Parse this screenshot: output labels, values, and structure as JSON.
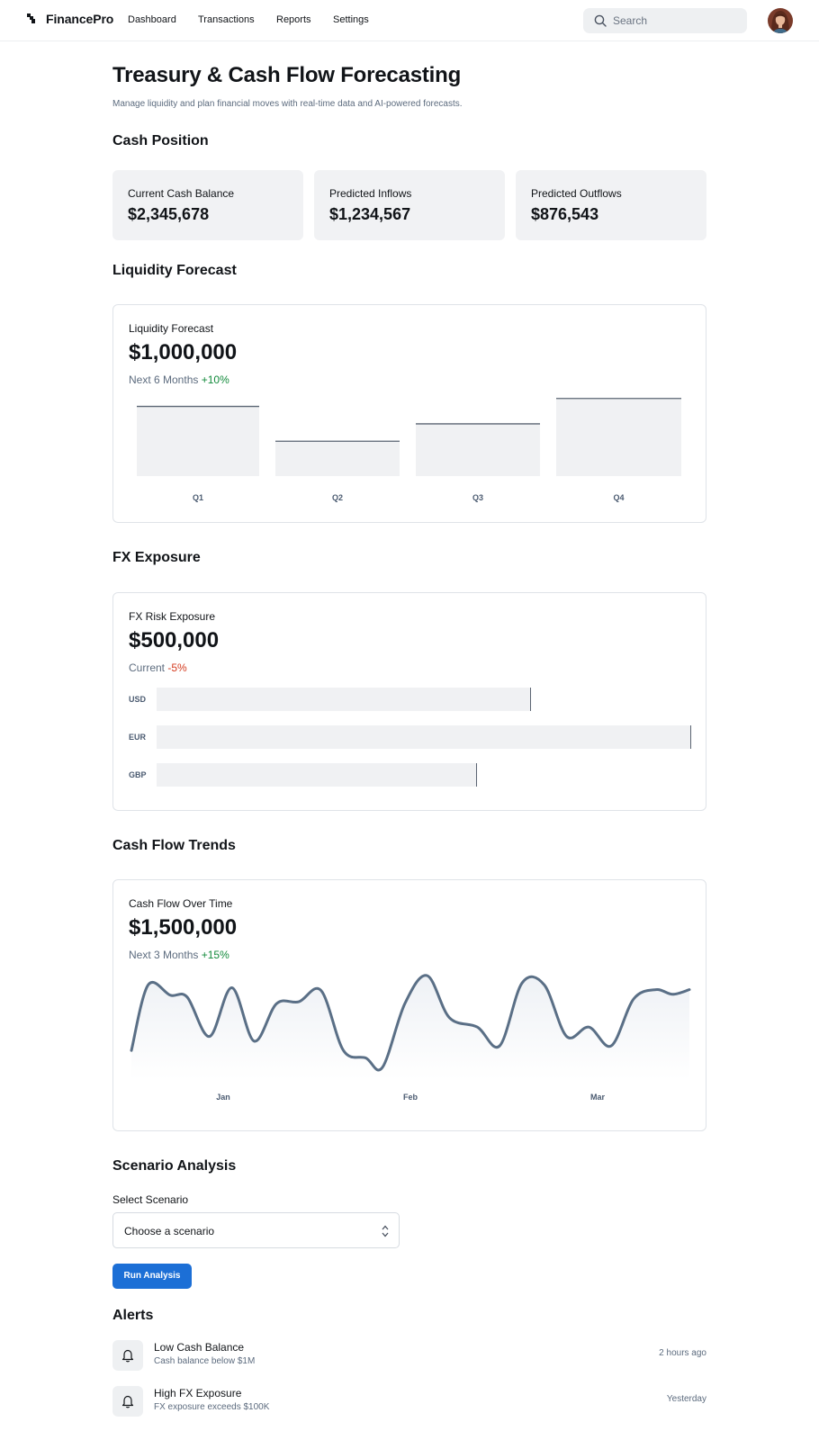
{
  "header": {
    "brand": "FinancePro",
    "nav": [
      "Dashboard",
      "Transactions",
      "Reports",
      "Settings"
    ],
    "search_placeholder": "Search"
  },
  "page": {
    "title": "Treasury & Cash Flow Forecasting",
    "subtitle": "Manage liquidity and plan financial moves with real-time data and AI-powered forecasts."
  },
  "cash_position": {
    "title": "Cash Position",
    "cards": [
      {
        "label": "Current Cash Balance",
        "value": "$2,345,678"
      },
      {
        "label": "Predicted Inflows",
        "value": "$1,234,567"
      },
      {
        "label": "Predicted Outflows",
        "value": "$876,543"
      }
    ]
  },
  "liquidity": {
    "section_title": "Liquidity Forecast",
    "label": "Liquidity Forecast",
    "value": "$1,000,000",
    "period": "Next 6 Months",
    "change": "+10%"
  },
  "fx": {
    "section_title": "FX Exposure",
    "label": "FX Risk Exposure",
    "value": "$500,000",
    "period": "Current",
    "change": "-5%"
  },
  "cashflow": {
    "section_title": "Cash Flow Trends",
    "label": "Cash Flow Over Time",
    "value": "$1,500,000",
    "period": "Next 3 Months",
    "change": "+15%"
  },
  "scenario": {
    "section_title": "Scenario Analysis",
    "select_label": "Select Scenario",
    "select_value": "Choose a scenario",
    "button": "Run Analysis"
  },
  "alerts": {
    "section_title": "Alerts",
    "items": [
      {
        "title": "Low Cash Balance",
        "desc": "Cash balance below $1M",
        "time": "2 hours ago",
        "icon": "bell-icon"
      },
      {
        "title": "High FX Exposure",
        "desc": "FX exposure exceeds $100K",
        "time": "Yesterday",
        "icon": "bell-icon"
      }
    ]
  },
  "colors": {
    "accent": "#1c6fd6",
    "positive": "#128a3b",
    "negative": "#d43b1f",
    "line": "#5a6f86"
  },
  "chart_data": [
    {
      "type": "bar",
      "categories": [
        "Q1",
        "Q2",
        "Q3",
        "Q4"
      ],
      "values": [
        88,
        44,
        66,
        98
      ],
      "ylim": [
        0,
        100
      ]
    },
    {
      "type": "bar",
      "orientation": "horizontal",
      "categories": [
        "USD",
        "EUR",
        "GBP"
      ],
      "values": [
        70,
        100,
        60
      ],
      "ylim": [
        0,
        100
      ]
    },
    {
      "type": "line",
      "x": [
        0,
        3,
        7,
        10,
        14,
        18,
        22,
        26,
        30,
        34,
        38,
        42,
        45,
        49,
        53,
        57,
        62,
        66,
        70,
        74,
        78,
        82,
        86,
        90,
        94,
        97,
        100
      ],
      "values": [
        20,
        90,
        79,
        77,
        35,
        87,
        30,
        70,
        72,
        84,
        20,
        12,
        2,
        70,
        100,
        55,
        45,
        25,
        92,
        90,
        35,
        45,
        25,
        75,
        85,
        80,
        85
      ],
      "tick_labels": [
        "Jan",
        "Feb",
        "Mar"
      ],
      "ylim": [
        0,
        100
      ]
    }
  ]
}
